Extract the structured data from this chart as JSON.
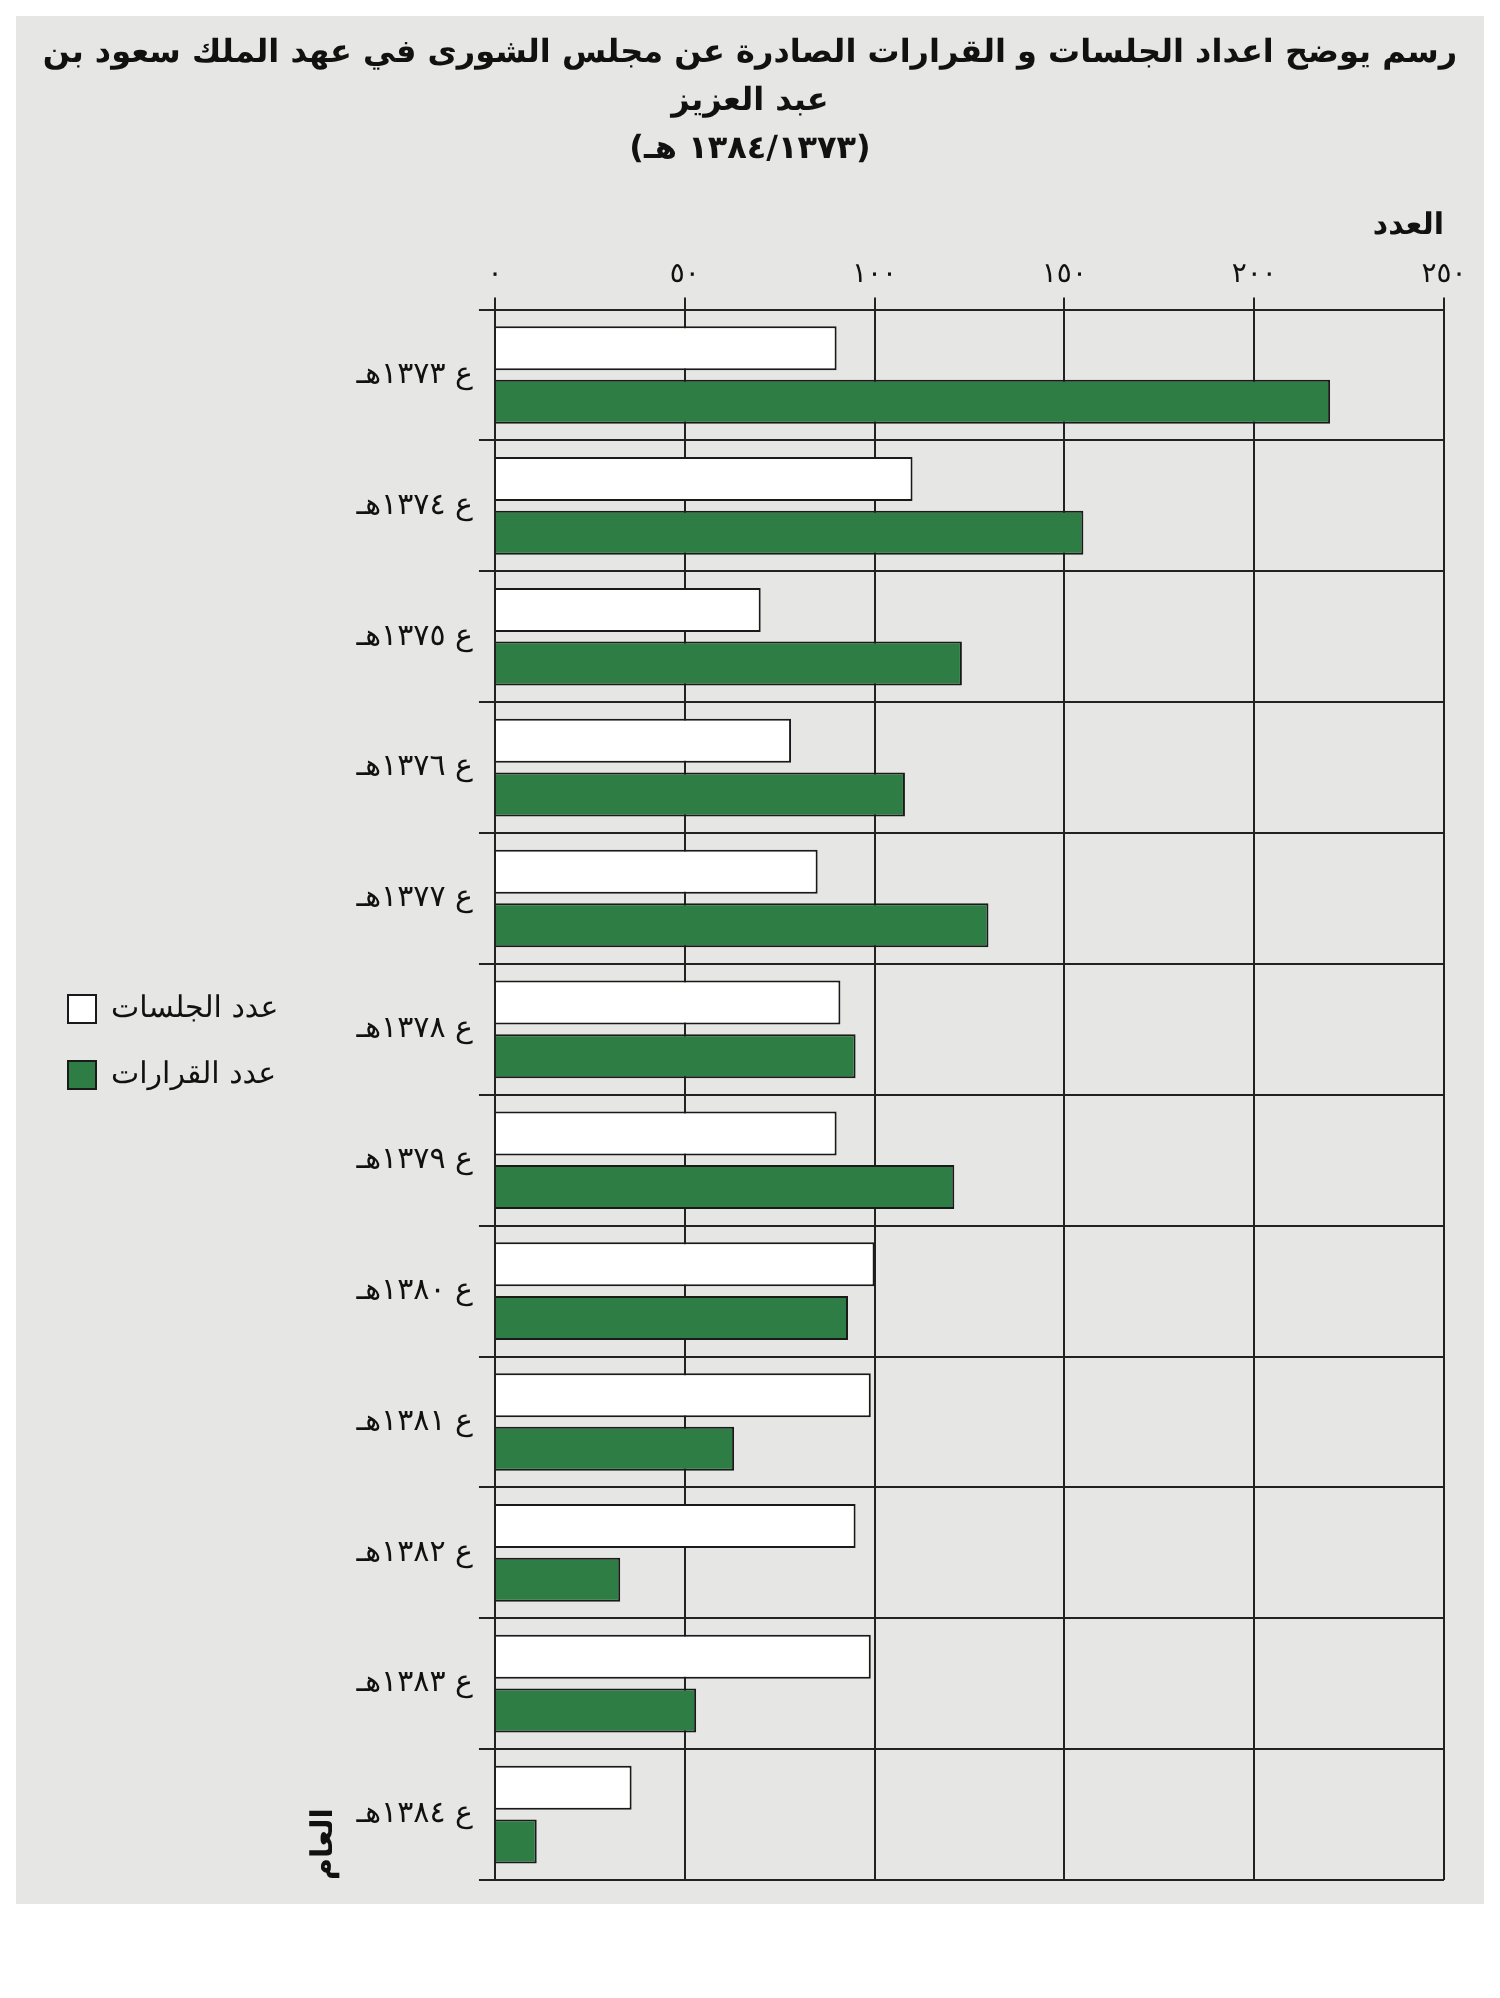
{
  "chart_data": {
    "type": "bar",
    "orientation": "horizontal",
    "title": "رسم يوضح اعداد الجلسات و القرارات الصادرة عن مجلس الشورى في عهد الملك سعود بن عبد العزيز",
    "subtitle": "(١٣٨٤/١٣٧٣ هـ)",
    "xlabel": "العدد",
    "ylabel": "العام",
    "categories": [
      "ع ١٣٧٣هـ",
      "ع ١٣٧٤هـ",
      "ع ١٣٧٥هـ",
      "ع ١٣٧٦هـ",
      "ع ١٣٧٧هـ",
      "ع ١٣٧٨هـ",
      "ع ١٣٧٩هـ",
      "ع ١٣٨٠هـ",
      "ع ١٣٨١هـ",
      "ع ١٣٨٢هـ",
      "ع ١٣٨٣هـ",
      "ع ١٣٨٤هـ"
    ],
    "series": [
      {
        "name": "عدد الجلسات",
        "color": "#ffffff",
        "values": [
          90,
          110,
          70,
          78,
          85,
          91,
          90,
          100,
          99,
          95,
          99,
          36
        ]
      },
      {
        "name": "عدد القرارات",
        "color": "#2e7d45",
        "values": [
          220,
          155,
          123,
          108,
          130,
          95,
          121,
          93,
          63,
          33,
          53,
          11
        ]
      }
    ],
    "xlim": [
      0,
      250
    ],
    "xticks": [
      {
        "value": 0,
        "label": "٠"
      },
      {
        "value": 50,
        "label": "٥٠"
      },
      {
        "value": 100,
        "label": "١٠٠"
      },
      {
        "value": 150,
        "label": "١٥٠"
      },
      {
        "value": 200,
        "label": "٢٠٠"
      },
      {
        "value": 250,
        "label": "٢٥٠"
      }
    ],
    "grid": true,
    "legend": "left"
  }
}
